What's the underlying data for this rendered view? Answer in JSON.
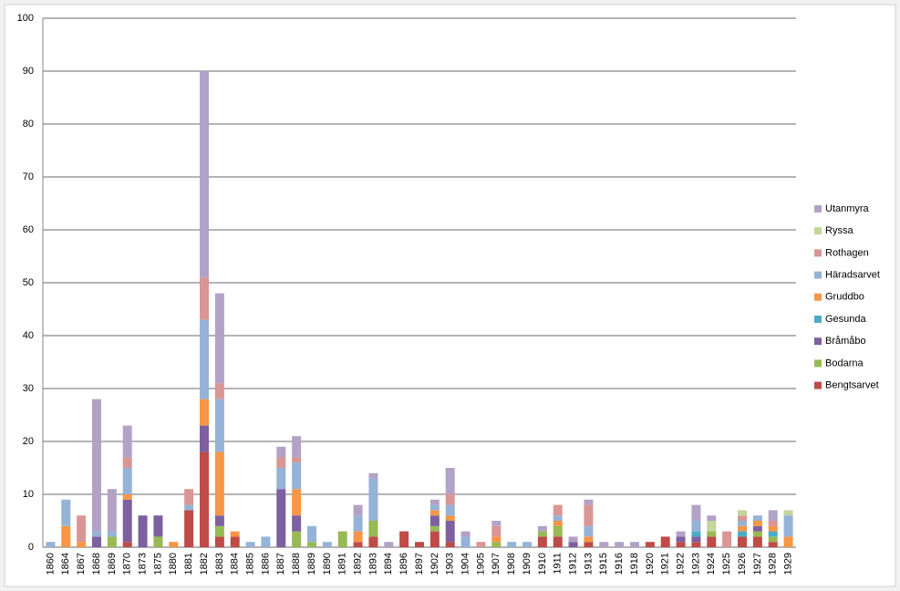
{
  "chart_data": {
    "type": "stacked_bar",
    "categories": [
      "1860",
      "1864",
      "1867",
      "1868",
      "1869",
      "1870",
      "1873",
      "1875",
      "1880",
      "1881",
      "1882",
      "1883",
      "1884",
      "1885",
      "1886",
      "1887",
      "1888",
      "1889",
      "1890",
      "1891",
      "1892",
      "1893",
      "1894",
      "1896",
      "1897",
      "1902",
      "1903",
      "1904",
      "1905",
      "1907",
      "1908",
      "1909",
      "1910",
      "1911",
      "1912",
      "1913",
      "1915",
      "1916",
      "1918",
      "1920",
      "1921",
      "1922",
      "1923",
      "1924",
      "1925",
      "1926",
      "1927",
      "1928",
      "1929"
    ],
    "series": [
      {
        "name": "Bengtsarvet",
        "color": "#be4b48",
        "values": [
          0,
          0,
          0,
          0,
          0,
          1,
          0,
          0,
          0,
          7,
          18,
          2,
          2,
          0,
          0,
          0,
          0,
          0,
          0,
          0,
          1,
          2,
          0,
          3,
          1,
          3,
          1,
          0,
          0,
          0,
          0,
          0,
          2,
          2,
          0,
          1,
          0,
          0,
          0,
          1,
          2,
          1,
          1,
          2,
          0,
          2,
          2,
          1,
          0
        ]
      },
      {
        "name": "Bodarna",
        "color": "#98b954",
        "values": [
          0,
          0,
          0,
          0,
          2,
          0,
          0,
          2,
          0,
          0,
          0,
          2,
          0,
          0,
          0,
          0,
          3,
          1,
          0,
          3,
          0,
          3,
          0,
          0,
          0,
          1,
          0,
          0,
          0,
          1,
          0,
          0,
          1,
          2,
          0,
          0,
          0,
          0,
          0,
          0,
          0,
          0,
          0,
          1,
          0,
          0,
          1,
          1,
          0
        ]
      },
      {
        "name": "Bråmåbo",
        "color": "#7d60a0",
        "values": [
          0,
          0,
          0,
          2,
          0,
          8,
          6,
          4,
          0,
          0,
          5,
          2,
          0,
          0,
          0,
          11,
          3,
          0,
          0,
          0,
          0,
          0,
          0,
          0,
          0,
          2,
          4,
          0,
          0,
          0,
          0,
          0,
          0,
          0,
          1,
          0,
          0,
          0,
          0,
          0,
          0,
          1,
          1,
          0,
          0,
          0,
          1,
          0,
          0
        ]
      },
      {
        "name": "Gesunda",
        "color": "#4bacc6",
        "values": [
          0,
          0,
          0,
          0,
          0,
          0,
          0,
          0,
          0,
          0,
          0,
          0,
          0,
          0,
          0,
          0,
          0,
          0,
          0,
          0,
          0,
          0,
          0,
          0,
          0,
          0,
          0,
          0,
          0,
          0,
          0,
          0,
          0,
          0,
          0,
          0,
          0,
          0,
          0,
          0,
          0,
          0,
          1,
          0,
          0,
          1,
          0,
          1,
          0
        ]
      },
      {
        "name": "Gruddbo",
        "color": "#f79646",
        "values": [
          0,
          4,
          1,
          0,
          0,
          1,
          0,
          0,
          1,
          0,
          5,
          12,
          1,
          0,
          0,
          0,
          5,
          0,
          0,
          0,
          2,
          0,
          0,
          0,
          0,
          1,
          1,
          0,
          0,
          1,
          0,
          0,
          0,
          1,
          0,
          1,
          0,
          0,
          0,
          0,
          0,
          0,
          0,
          0,
          0,
          1,
          1,
          1,
          2
        ]
      },
      {
        "name": "Häradsarvet",
        "color": "#95b3d7",
        "values": [
          1,
          5,
          0,
          1,
          1,
          5,
          0,
          0,
          0,
          1,
          15,
          10,
          0,
          1,
          2,
          4,
          5,
          3,
          1,
          0,
          3,
          8,
          0,
          0,
          0,
          1,
          2,
          2,
          0,
          0,
          1,
          1,
          0,
          1,
          0,
          2,
          0,
          0,
          0,
          0,
          0,
          0,
          2,
          0,
          0,
          1,
          1,
          0,
          4
        ]
      },
      {
        "name": "Rothagen",
        "color": "#d99694",
        "values": [
          0,
          0,
          5,
          0,
          0,
          2,
          0,
          0,
          0,
          3,
          8,
          3,
          0,
          0,
          0,
          2,
          1,
          0,
          0,
          0,
          0,
          0,
          0,
          0,
          0,
          0,
          2,
          0,
          1,
          2,
          0,
          0,
          0,
          2,
          0,
          4,
          0,
          0,
          0,
          0,
          0,
          0,
          0,
          0,
          3,
          1,
          0,
          1,
          0
        ]
      },
      {
        "name": "Ryssa",
        "color": "#c3d69b",
        "values": [
          0,
          0,
          0,
          0,
          0,
          0,
          0,
          0,
          0,
          0,
          0,
          0,
          0,
          0,
          0,
          0,
          0,
          0,
          0,
          0,
          0,
          0,
          0,
          0,
          0,
          0,
          0,
          0,
          0,
          0,
          0,
          0,
          0,
          0,
          0,
          0,
          0,
          0,
          0,
          0,
          0,
          0,
          0,
          2,
          0,
          1,
          0,
          0,
          1
        ]
      },
      {
        "name": "Utanmyra",
        "color": "#b3a2c7",
        "values": [
          0,
          0,
          0,
          25,
          8,
          6,
          0,
          0,
          0,
          0,
          39,
          17,
          0,
          0,
          0,
          2,
          4,
          0,
          0,
          0,
          2,
          1,
          1,
          0,
          0,
          1,
          5,
          1,
          0,
          1,
          0,
          0,
          1,
          0,
          1,
          1,
          1,
          1,
          1,
          0,
          0,
          1,
          3,
          1,
          0,
          0,
          0,
          2,
          0
        ]
      }
    ],
    "ylim": [
      0,
      100
    ],
    "yticks": [
      0,
      10,
      20,
      30,
      40,
      50,
      60,
      70,
      80,
      90,
      100
    ],
    "grid": true,
    "legend": "right"
  }
}
